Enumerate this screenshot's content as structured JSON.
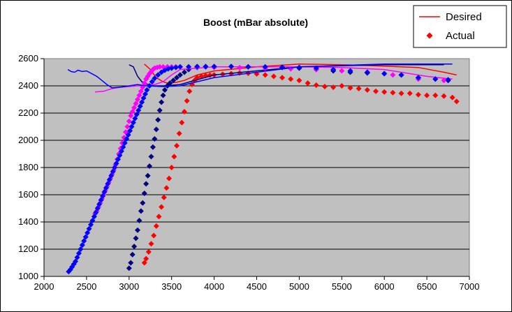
{
  "chart_data": {
    "type": "scatter",
    "title": "Boost (mBar absolute)",
    "xlabel": "",
    "ylabel": "",
    "xlim": [
      2000,
      7000
    ],
    "ylim": [
      1000,
      2600
    ],
    "xticks": [
      "2000",
      "2500",
      "3000",
      "3500",
      "4000",
      "4500",
      "5000",
      "5500",
      "6000",
      "6500",
      "7000"
    ],
    "yticks": [
      "1000",
      "1200",
      "1400",
      "1600",
      "1800",
      "2000",
      "2200",
      "2400",
      "2600"
    ],
    "grid": "horizontal",
    "plot_background": "#c0c0c0",
    "legend": {
      "placement": "top-right",
      "entries": [
        {
          "label": "Desired",
          "marker": "line",
          "color": "#ff0000"
        },
        {
          "label": "Actual",
          "marker": "diamond",
          "color": "#ff0000"
        }
      ]
    },
    "series": [
      {
        "color": "#ff0000",
        "kind": "line",
        "role": "desired",
        "x": [
          3180,
          3250,
          3320,
          3400,
          3450,
          3550,
          3650,
          3800,
          4000,
          4500,
          5000,
          5500,
          6000,
          6400,
          6700,
          6850
        ],
        "y": [
          2560,
          2520,
          2460,
          2430,
          2420,
          2425,
          2440,
          2480,
          2510,
          2540,
          2560,
          2555,
          2545,
          2535,
          2500,
          2480
        ]
      },
      {
        "color": "#ff0000",
        "kind": "markers",
        "role": "actual",
        "x": [
          3180,
          3200,
          3230,
          3260,
          3290,
          3320,
          3350,
          3380,
          3410,
          3440,
          3470,
          3500,
          3530,
          3560,
          3590,
          3620,
          3650,
          3680,
          3710,
          3740,
          3770,
          3800,
          3850,
          3900,
          3950,
          4000,
          4100,
          4200,
          4300,
          4400,
          4500,
          4600,
          4700,
          4800,
          4900,
          5000,
          5100,
          5200,
          5300,
          5400,
          5500,
          5600,
          5700,
          5800,
          5900,
          6000,
          6100,
          6200,
          6300,
          6400,
          6500,
          6600,
          6700,
          6800,
          6850
        ],
        "y": [
          1100,
          1130,
          1180,
          1240,
          1300,
          1370,
          1440,
          1510,
          1580,
          1650,
          1720,
          1800,
          1880,
          1960,
          2050,
          2130,
          2210,
          2290,
          2360,
          2410,
          2440,
          2460,
          2470,
          2475,
          2478,
          2480,
          2485,
          2490,
          2495,
          2492,
          2488,
          2480,
          2470,
          2460,
          2450,
          2440,
          2420,
          2405,
          2395,
          2390,
          2400,
          2385,
          2380,
          2370,
          2360,
          2355,
          2350,
          2345,
          2345,
          2335,
          2330,
          2330,
          2325,
          2315,
          2285
        ]
      },
      {
        "color": "#000080",
        "kind": "line",
        "role": "desired",
        "x": [
          3000,
          3050,
          3100,
          3150,
          3200,
          3250,
          3300,
          3400,
          3600,
          4000,
          5000,
          6000,
          6700
        ],
        "y": [
          2555,
          2540,
          2470,
          2430,
          2415,
          2405,
          2400,
          2400,
          2410,
          2480,
          2540,
          2555,
          2555
        ]
      },
      {
        "color": "#000080",
        "kind": "markers",
        "role": "actual",
        "x": [
          3000,
          3020,
          3040,
          3060,
          3080,
          3100,
          3120,
          3140,
          3160,
          3180,
          3200,
          3220,
          3240,
          3260,
          3280,
          3300,
          3320,
          3340,
          3360,
          3380,
          3400,
          3420,
          3450,
          3480,
          3520,
          3560,
          3600,
          3650,
          3700,
          3800,
          3900,
          4000,
          4200,
          4400,
          4600,
          4800,
          5000,
          5200,
          5400,
          5600,
          5800,
          6000,
          6200,
          6400,
          6600,
          6750
        ],
        "y": [
          1060,
          1100,
          1160,
          1220,
          1280,
          1340,
          1410,
          1480,
          1540,
          1610,
          1680,
          1740,
          1810,
          1880,
          1950,
          2010,
          2080,
          2150,
          2220,
          2280,
          2330,
          2370,
          2400,
          2420,
          2440,
          2460,
          2480,
          2500,
          2520,
          2535,
          2540,
          2540,
          2542,
          2540,
          2538,
          2535,
          2530,
          2520,
          2510,
          2500,
          2495,
          2490,
          2480,
          2460,
          2450,
          2440
        ]
      },
      {
        "color": "#ff00ff",
        "kind": "line",
        "role": "desired",
        "x": [
          2600,
          2700,
          2800,
          2900,
          3000,
          3100,
          3200,
          3300,
          3400,
          3500,
          3600,
          4000,
          5000,
          5500,
          6000,
          6500,
          6800
        ],
        "y": [
          2355,
          2360,
          2380,
          2390,
          2395,
          2400,
          2405,
          2410,
          2430,
          2480,
          2520,
          2540,
          2540,
          2535,
          2520,
          2470,
          2450
        ]
      },
      {
        "color": "#ff00ff",
        "kind": "markers",
        "role": "actual",
        "x": [
          2600,
          2620,
          2640,
          2660,
          2680,
          2700,
          2720,
          2740,
          2760,
          2780,
          2800,
          2820,
          2840,
          2860,
          2880,
          2900,
          2920,
          2940,
          2960,
          2980,
          3000,
          3020,
          3040,
          3060,
          3080,
          3100,
          3120,
          3140,
          3160,
          3180,
          3200,
          3220,
          3240,
          3260,
          3280,
          3300,
          3330,
          3360,
          3400,
          3450,
          3500,
          3550,
          3600,
          3700,
          3800,
          4000,
          4300,
          4600,
          4900,
          5200,
          5500,
          5800,
          6100,
          6400,
          6700
        ],
        "y": [
          1460,
          1480,
          1510,
          1540,
          1570,
          1600,
          1630,
          1660,
          1690,
          1720,
          1750,
          1780,
          1820,
          1860,
          1900,
          1940,
          1980,
          2020,
          2060,
          2100,
          2140,
          2180,
          2210,
          2240,
          2270,
          2300,
          2330,
          2360,
          2390,
          2420,
          2450,
          2470,
          2490,
          2505,
          2520,
          2530,
          2535,
          2540,
          2540,
          2540,
          2540,
          2540,
          2540,
          2540,
          2538,
          2536,
          2534,
          2530,
          2525,
          2520,
          2510,
          2500,
          2480,
          2450,
          2440
        ]
      },
      {
        "color": "#0000ff",
        "kind": "line",
        "role": "desired",
        "x": [
          2280,
          2320,
          2360,
          2400,
          2450,
          2500,
          2560,
          2620,
          2680,
          2740,
          2800,
          2900,
          3000,
          3100,
          3200,
          3400,
          3600,
          3800,
          4000,
          5000,
          6000,
          6800
        ],
        "y": [
          2520,
          2505,
          2500,
          2515,
          2505,
          2510,
          2490,
          2470,
          2440,
          2410,
          2385,
          2390,
          2400,
          2410,
          2400,
          2395,
          2400,
          2430,
          2460,
          2540,
          2560,
          2560
        ]
      },
      {
        "color": "#0000ff",
        "kind": "markers",
        "role": "actual",
        "x": [
          2290,
          2310,
          2330,
          2350,
          2370,
          2390,
          2410,
          2430,
          2450,
          2470,
          2490,
          2510,
          2530,
          2550,
          2570,
          2590,
          2610,
          2630,
          2650,
          2670,
          2690,
          2710,
          2730,
          2750,
          2770,
          2790,
          2810,
          2830,
          2850,
          2870,
          2890,
          2910,
          2930,
          2950,
          2970,
          2990,
          3010,
          3030,
          3050,
          3070,
          3090,
          3110,
          3130,
          3150,
          3170,
          3190,
          3210,
          3240,
          3270,
          3300,
          3340,
          3380,
          3420,
          3460,
          3500,
          3550,
          3600,
          3700,
          3800,
          3900,
          4000,
          4200,
          4400,
          4600,
          4800,
          5000,
          5200,
          5400,
          5600,
          5800,
          6000,
          6200,
          6400,
          6600,
          6750
        ],
        "y": [
          1035,
          1050,
          1070,
          1090,
          1110,
          1140,
          1170,
          1200,
          1230,
          1260,
          1290,
          1320,
          1350,
          1380,
          1410,
          1440,
          1470,
          1500,
          1530,
          1560,
          1590,
          1620,
          1650,
          1680,
          1710,
          1740,
          1770,
          1800,
          1830,
          1860,
          1890,
          1920,
          1950,
          1980,
          2010,
          2040,
          2070,
          2100,
          2130,
          2160,
          2190,
          2220,
          2250,
          2280,
          2310,
          2340,
          2370,
          2400,
          2430,
          2455,
          2480,
          2500,
          2515,
          2525,
          2530,
          2535,
          2540,
          2540,
          2542,
          2542,
          2542,
          2542,
          2540,
          2540,
          2538,
          2535,
          2530,
          2520,
          2510,
          2500,
          2490,
          2480,
          2460,
          2450,
          2445
        ]
      }
    ]
  }
}
